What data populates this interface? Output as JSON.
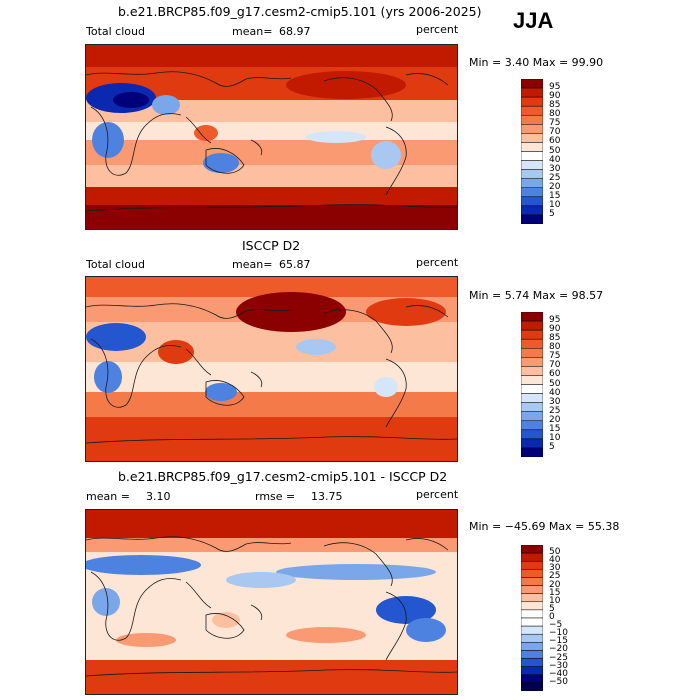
{
  "season": "JJA",
  "panels": [
    {
      "title": "b.e21.BRCP85.f09_g17.cesm2-cmip5.101 (yrs 2006-2025)",
      "left_label": "Total cloud",
      "stat1": "mean=",
      "stat1_value": "68.97",
      "stat2": "",
      "stat2_value": "",
      "units": "percent",
      "minmax": "Min =    3.40  Max =   99.90",
      "colorbar": {
        "levels": [
          "95",
          "90",
          "85",
          "80",
          "75",
          "70",
          "60",
          "50",
          "40",
          "30",
          "25",
          "20",
          "15",
          "10",
          "5"
        ],
        "colors": [
          "#8b0000",
          "#c21a00",
          "#e03a10",
          "#ee5a2a",
          "#f57a4a",
          "#f99a72",
          "#fcc0a0",
          "#fde6d6",
          "#ffffff",
          "#d6e6fa",
          "#a8c8f2",
          "#7aa6ea",
          "#4d82e0",
          "#2456d0",
          "#0a28b0",
          "#00007a"
        ]
      }
    },
    {
      "title": "ISCCP D2",
      "left_label": "Total cloud",
      "stat1": "mean=",
      "stat1_value": "65.87",
      "stat2": "",
      "stat2_value": "",
      "units": "percent",
      "minmax": "Min =    5.74  Max =   98.57",
      "colorbar": {
        "levels": [
          "95",
          "90",
          "85",
          "80",
          "75",
          "70",
          "60",
          "50",
          "40",
          "30",
          "25",
          "20",
          "15",
          "10",
          "5"
        ],
        "colors": [
          "#8b0000",
          "#c21a00",
          "#e03a10",
          "#ee5a2a",
          "#f57a4a",
          "#f99a72",
          "#fcc0a0",
          "#fde6d6",
          "#ffffff",
          "#d6e6fa",
          "#a8c8f2",
          "#7aa6ea",
          "#4d82e0",
          "#2456d0",
          "#0a28b0",
          "#00007a"
        ]
      }
    },
    {
      "title": "b.e21.BRCP85.f09_g17.cesm2-cmip5.101 - ISCCP D2",
      "left_label": "",
      "stat1": "mean =",
      "stat1_value": "3.10",
      "stat2": "rmse =",
      "stat2_value": "13.75",
      "units": "percent",
      "minmax": "Min = −45.69  Max =   55.38",
      "colorbar": {
        "levels": [
          "50",
          "40",
          "30",
          "25",
          "20",
          "15",
          "10",
          "5",
          "0",
          "−5",
          "−10",
          "−15",
          "−20",
          "−25",
          "−30",
          "−40",
          "−50"
        ],
        "colors": [
          "#8b0000",
          "#c21a00",
          "#e03a10",
          "#ee5a2a",
          "#f57a4a",
          "#f99a72",
          "#fcc0a0",
          "#fde6d6",
          "#ffffff",
          "#ffffff",
          "#d6e6fa",
          "#a8c8f2",
          "#7aa6ea",
          "#4d82e0",
          "#2456d0",
          "#0a28b0",
          "#00007a",
          "#00004a"
        ]
      }
    }
  ],
  "colors": {
    "deep_red": "#8b0000",
    "red": "#e03a10",
    "light_red": "#fcc0a0",
    "white": "#ffffff",
    "light_blue": "#a8c8f2",
    "blue": "#2456d0",
    "coast": "#1a1a1a"
  }
}
